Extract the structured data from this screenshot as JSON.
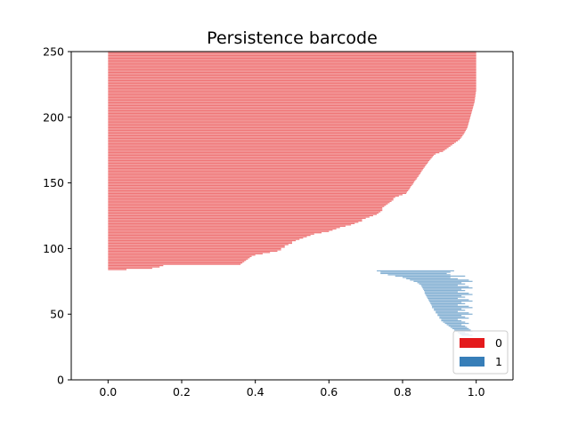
{
  "chart_data": {
    "type": "bar",
    "orientation": "horizontal",
    "title": "Persistence barcode",
    "xlabel": "",
    "ylabel": "",
    "xlim": [
      -0.1,
      1.1
    ],
    "ylim": [
      0,
      250
    ],
    "xticks": [
      0.0,
      0.2,
      0.4,
      0.6,
      0.8,
      1.0
    ],
    "xtick_labels": [
      "0.0",
      "0.2",
      "0.4",
      "0.6",
      "0.8",
      "1.0"
    ],
    "yticks": [
      0,
      50,
      100,
      150,
      200,
      250
    ],
    "ytick_labels": [
      "0",
      "50",
      "100",
      "150",
      "200",
      "250"
    ],
    "grid": false,
    "legend_position": "lower-right",
    "series": [
      {
        "name": "0",
        "color": "#e41a1c",
        "opacity": 0.6,
        "first_index": 84,
        "step": 1,
        "birth": [
          0,
          0,
          0,
          0,
          0,
          0,
          0,
          0,
          0,
          0,
          0,
          0,
          0,
          0,
          0,
          0,
          0,
          0,
          0,
          0,
          0,
          0,
          0,
          0,
          0,
          0,
          0,
          0,
          0,
          0,
          0,
          0,
          0,
          0,
          0,
          0,
          0,
          0,
          0,
          0,
          0,
          0,
          0,
          0,
          0,
          0,
          0,
          0,
          0,
          0,
          0,
          0,
          0,
          0,
          0,
          0,
          0,
          0,
          0,
          0,
          0,
          0,
          0,
          0,
          0,
          0,
          0,
          0,
          0,
          0,
          0,
          0,
          0,
          0,
          0,
          0,
          0,
          0,
          0,
          0,
          0,
          0,
          0,
          0,
          0,
          0,
          0,
          0,
          0,
          0,
          0,
          0,
          0,
          0,
          0,
          0,
          0,
          0,
          0,
          0,
          0,
          0,
          0,
          0,
          0,
          0,
          0,
          0,
          0,
          0,
          0,
          0,
          0,
          0,
          0,
          0,
          0,
          0,
          0,
          0,
          0,
          0,
          0,
          0,
          0,
          0,
          0,
          0,
          0,
          0,
          0,
          0,
          0,
          0,
          0,
          0,
          0,
          0,
          0,
          0,
          0,
          0,
          0,
          0,
          0,
          0,
          0,
          0,
          0,
          0,
          0,
          0,
          0,
          0,
          0,
          0,
          0,
          0,
          0,
          0,
          0,
          0,
          0,
          0,
          0,
          0,
          0
        ],
        "death": [
          0.05,
          0.12,
          0.14,
          0.15,
          0.36,
          0.365,
          0.37,
          0.375,
          0.38,
          0.385,
          0.39,
          0.4,
          0.42,
          0.44,
          0.46,
          0.47,
          0.47,
          0.48,
          0.48,
          0.49,
          0.5,
          0.5,
          0.51,
          0.52,
          0.53,
          0.54,
          0.55,
          0.56,
          0.58,
          0.6,
          0.61,
          0.62,
          0.63,
          0.645,
          0.66,
          0.67,
          0.68,
          0.69,
          0.69,
          0.7,
          0.71,
          0.72,
          0.73,
          0.735,
          0.74,
          0.745,
          0.745,
          0.745,
          0.75,
          0.755,
          0.76,
          0.765,
          0.77,
          0.775,
          0.775,
          0.78,
          0.79,
          0.8,
          0.81,
          0.812,
          0.815,
          0.818,
          0.82,
          0.822,
          0.825,
          0.828,
          0.83,
          0.832,
          0.835,
          0.838,
          0.84,
          0.843,
          0.845,
          0.848,
          0.85,
          0.852,
          0.855,
          0.857,
          0.86,
          0.862,
          0.865,
          0.868,
          0.87,
          0.873,
          0.876,
          0.879,
          0.882,
          0.885,
          0.89,
          0.9,
          0.91,
          0.915,
          0.92,
          0.925,
          0.93,
          0.935,
          0.94,
          0.945,
          0.95,
          0.955,
          0.958,
          0.961,
          0.963,
          0.966,
          0.968,
          0.97,
          0.972,
          0.974,
          0.976,
          0.977,
          0.978,
          0.979,
          0.98,
          0.981,
          0.982,
          0.983,
          0.984,
          0.985,
          0.986,
          0.987,
          0.988,
          0.989,
          0.99,
          0.991,
          0.992,
          0.993,
          0.994,
          0.995,
          0.996,
          0.996,
          0.997,
          0.997,
          0.998,
          0.998,
          0.999,
          0.999,
          1.0,
          1.0,
          1.0,
          1.0,
          1.0,
          1.0,
          1.0,
          1.0,
          1.0,
          1.0,
          1.0,
          1.0,
          1.0,
          1.0,
          1.0,
          1.0,
          1.0,
          1.0,
          1.0,
          1.0,
          1.0,
          1.0,
          1.0,
          1.0,
          1.0,
          1.0,
          1.0,
          1.0,
          1.0,
          1.0,
          1.0,
          1.0,
          1.0,
          1.0,
          1.0,
          1.0,
          1.1
        ]
      },
      {
        "name": "1",
        "color": "#377eb8",
        "opacity": 0.6,
        "first_index": 34,
        "step": 1,
        "birth": [
          0.96,
          0.955,
          0.95,
          0.945,
          0.94,
          0.935,
          0.93,
          0.925,
          0.92,
          0.915,
          0.91,
          0.905,
          0.905,
          0.9,
          0.9,
          0.895,
          0.895,
          0.89,
          0.89,
          0.885,
          0.885,
          0.88,
          0.88,
          0.878,
          0.876,
          0.874,
          0.872,
          0.87,
          0.868,
          0.866,
          0.864,
          0.862,
          0.86,
          0.86,
          0.858,
          0.856,
          0.854,
          0.852,
          0.85,
          0.845,
          0.84,
          0.83,
          0.82,
          0.81,
          0.8,
          0.78,
          0.76,
          0.74,
          0.74,
          0.73
        ],
        "death": [
          0.99,
          0.98,
          0.97,
          0.99,
          0.985,
          0.98,
          0.975,
          0.97,
          0.96,
          0.98,
          0.97,
          0.96,
          0.95,
          0.98,
          0.97,
          0.96,
          0.99,
          0.98,
          0.95,
          0.97,
          0.96,
          0.99,
          0.98,
          0.95,
          0.97,
          0.96,
          0.99,
          0.98,
          0.95,
          0.97,
          0.96,
          0.99,
          0.98,
          0.95,
          0.97,
          0.96,
          0.99,
          0.98,
          0.95,
          0.97,
          0.96,
          0.99,
          0.98,
          0.95,
          0.93,
          0.97,
          0.93,
          0.92,
          0.93,
          0.94
        ]
      }
    ]
  }
}
